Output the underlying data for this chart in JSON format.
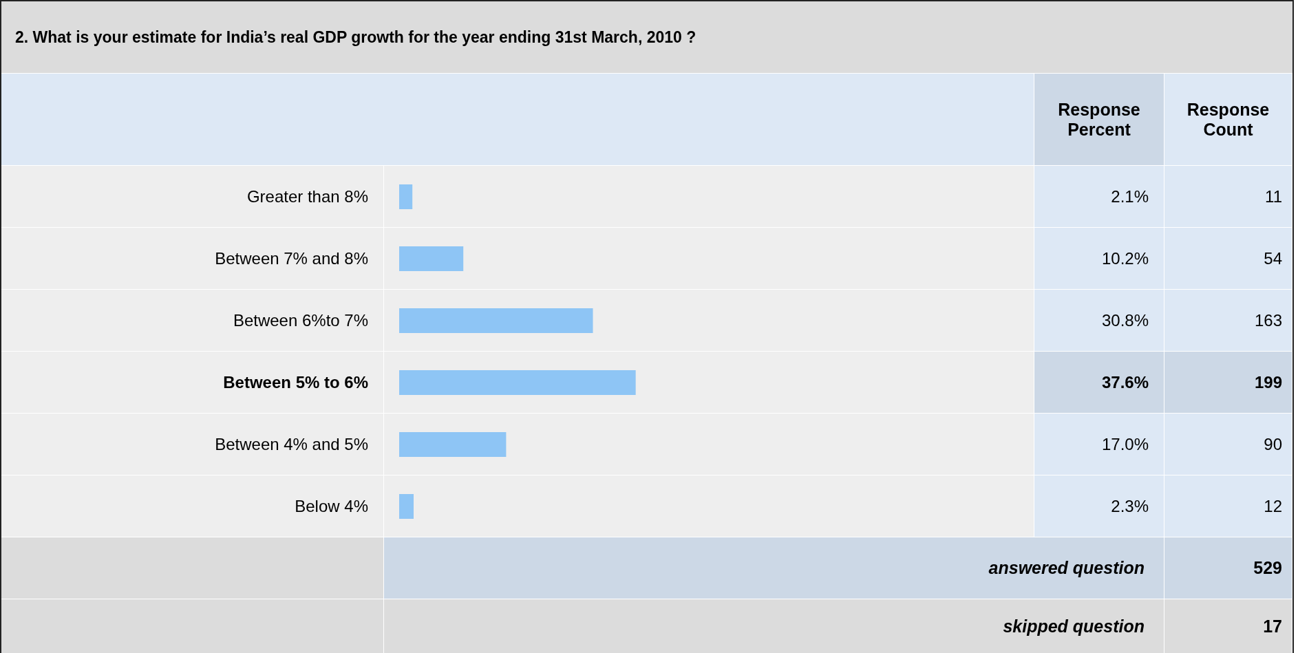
{
  "chart_data": {
    "type": "bar",
    "orientation": "horizontal",
    "title": "2. What is your estimate for India’s real GDP growth for the year ending 31st March, 2010 ?",
    "categories": [
      "Greater than 8%",
      "Between 7% and 8%",
      "Between 6%to 7%",
      "Between 5% to 6%",
      "Between 4% and 5%",
      "Below 4%"
    ],
    "values": [
      2.1,
      10.2,
      30.8,
      37.6,
      17.0,
      2.3
    ],
    "value_labels": [
      "2.1%",
      "10.2%",
      "30.8%",
      "37.6%",
      "17.0%",
      "2.3%"
    ],
    "color": "#8ec5f5",
    "tick_labels": false,
    "data_labels": true,
    "annotations": [
      "Response Percent",
      "Response Count",
      "11",
      "54",
      "163",
      "199",
      "90",
      "12",
      "answered question",
      "529",
      "skipped question",
      "17"
    ]
  }
}
